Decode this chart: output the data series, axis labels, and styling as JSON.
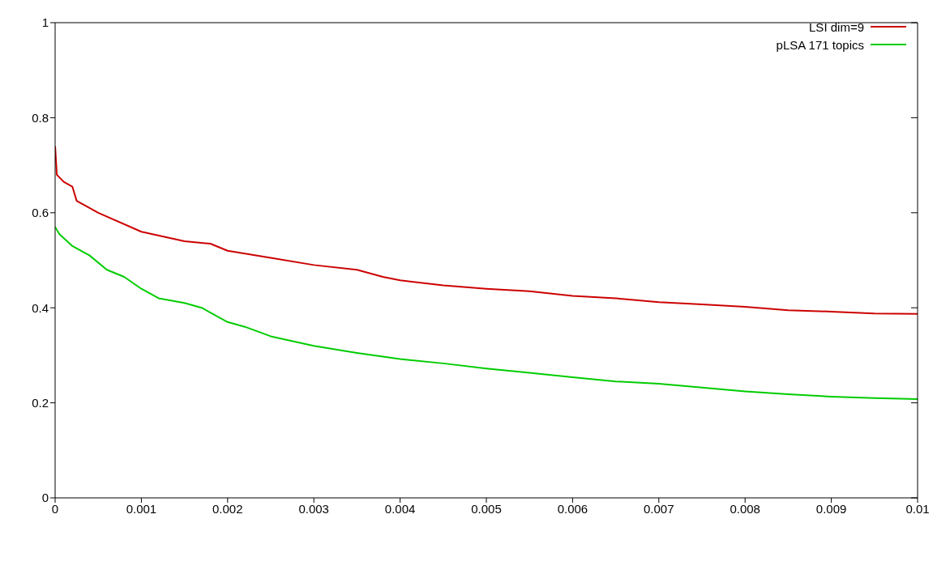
{
  "chart_data": {
    "type": "line",
    "xlim": [
      0,
      0.01
    ],
    "xticks": [
      0,
      0.001,
      0.002,
      0.003,
      0.004,
      0.005,
      0.006,
      0.007,
      0.008,
      0.009,
      0.01
    ],
    "ylim": [
      0,
      1
    ],
    "yticks": [
      0,
      0.2,
      0.4,
      0.6,
      0.8,
      1
    ],
    "grid": false,
    "legend": "top right",
    "marker": "none",
    "line_style": "solid",
    "series": [
      {
        "name": "LSI dim=9",
        "color": "#cc0000",
        "x": [
          0,
          2e-05,
          0.0001,
          0.0002,
          0.00025,
          0.0005,
          0.001,
          0.0015,
          0.0018,
          0.002,
          0.0025,
          0.003,
          0.0035,
          0.0038,
          0.004,
          0.0045,
          0.005,
          0.0055,
          0.006,
          0.0065,
          0.007,
          0.0075,
          0.008,
          0.0085,
          0.009,
          0.0095,
          0.01
        ],
        "values": [
          0.74,
          0.68,
          0.665,
          0.655,
          0.625,
          0.6,
          0.56,
          0.54,
          0.535,
          0.52,
          0.505,
          0.49,
          0.48,
          0.465,
          0.458,
          0.447,
          0.44,
          0.435,
          0.425,
          0.42,
          0.412,
          0.407,
          0.402,
          0.395,
          0.392,
          0.388,
          0.387
        ]
      },
      {
        "name": "pLSA 171 topics",
        "color": "#00cc00",
        "x": [
          0,
          5e-05,
          0.0002,
          0.0004,
          0.0006,
          0.0008,
          0.001,
          0.0012,
          0.0015,
          0.0017,
          0.002,
          0.0022,
          0.0025,
          0.003,
          0.0035,
          0.004,
          0.0045,
          0.005,
          0.0055,
          0.006,
          0.0065,
          0.007,
          0.0075,
          0.008,
          0.0085,
          0.009,
          0.0095,
          0.01
        ],
        "values": [
          0.57,
          0.555,
          0.53,
          0.51,
          0.48,
          0.465,
          0.44,
          0.42,
          0.41,
          0.4,
          0.37,
          0.36,
          0.34,
          0.32,
          0.305,
          0.292,
          0.283,
          0.272,
          0.263,
          0.254,
          0.245,
          0.24,
          0.232,
          0.224,
          0.218,
          0.213,
          0.21,
          0.208
        ]
      }
    ]
  }
}
